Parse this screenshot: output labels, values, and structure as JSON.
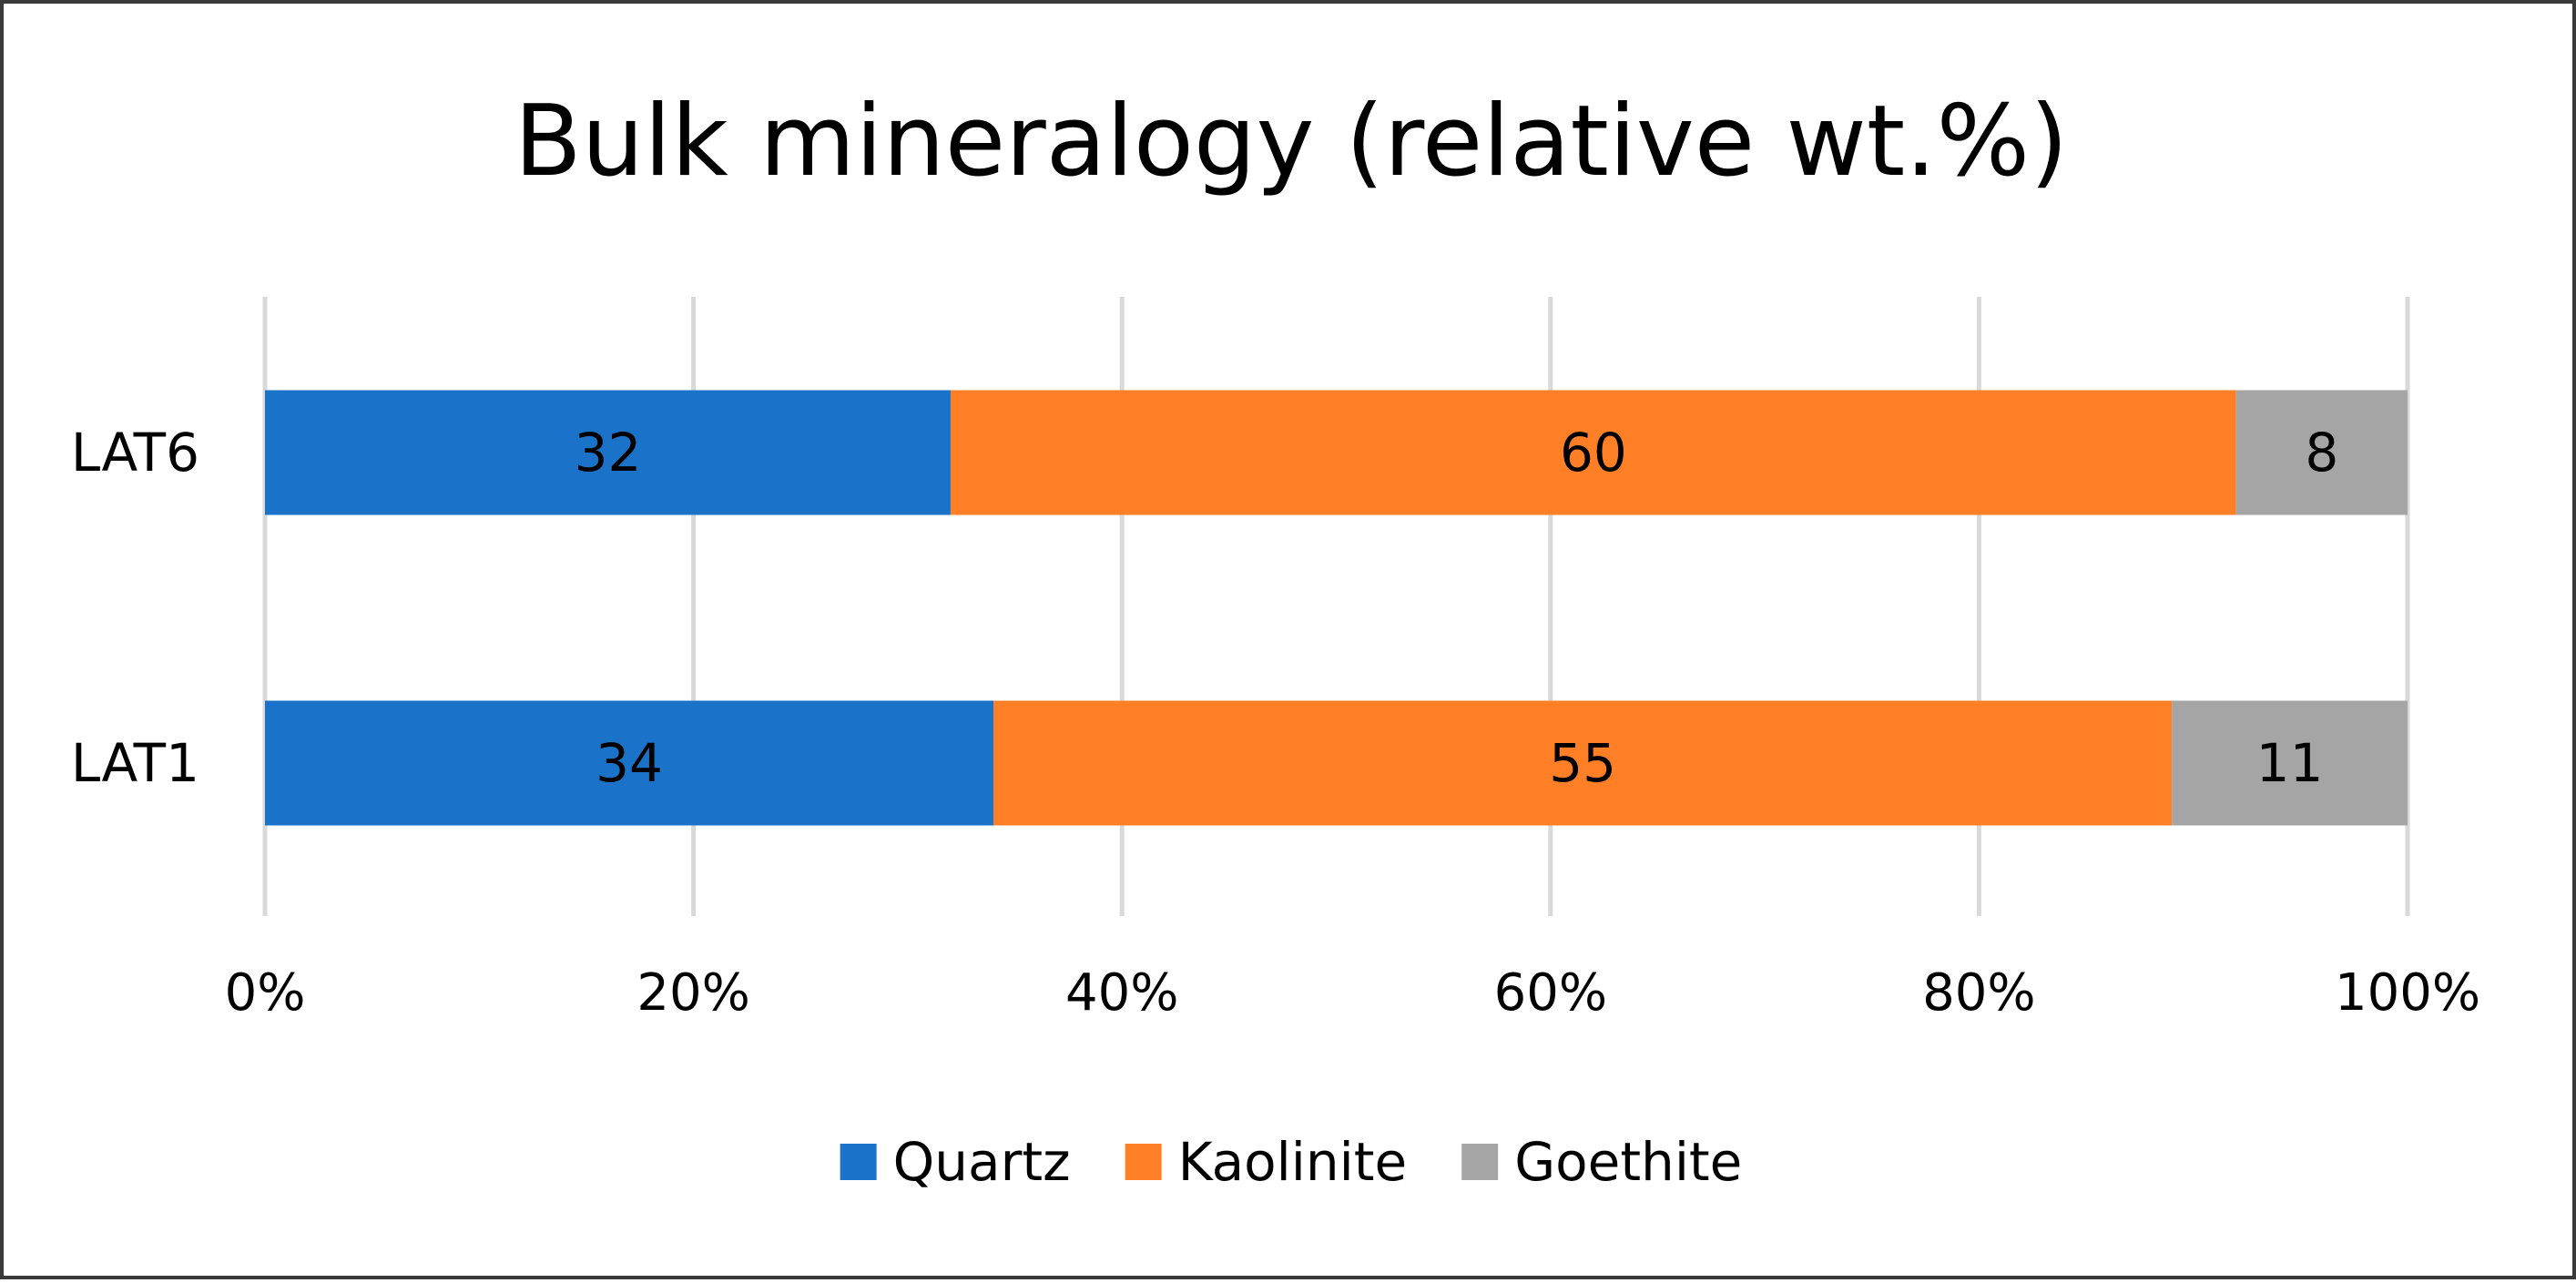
{
  "chart_data": {
    "type": "bar",
    "orientation": "horizontal",
    "stacked": "percent",
    "title": "Bulk mineralogy (relative wt.%)",
    "categories": [
      "LAT6",
      "LAT1"
    ],
    "series": [
      {
        "name": "Quartz",
        "color": "#1a73c8",
        "values": [
          32,
          34
        ]
      },
      {
        "name": "Kaolinite",
        "color": "#ff7f27",
        "values": [
          60,
          55
        ]
      },
      {
        "name": "Goethite",
        "color": "#a5a5a5",
        "values": [
          8,
          11
        ]
      }
    ],
    "xlim": [
      0,
      100
    ],
    "x_ticks": [
      "0%",
      "20%",
      "40%",
      "60%",
      "80%",
      "100%"
    ],
    "grid": true,
    "legend_position": "bottom"
  }
}
